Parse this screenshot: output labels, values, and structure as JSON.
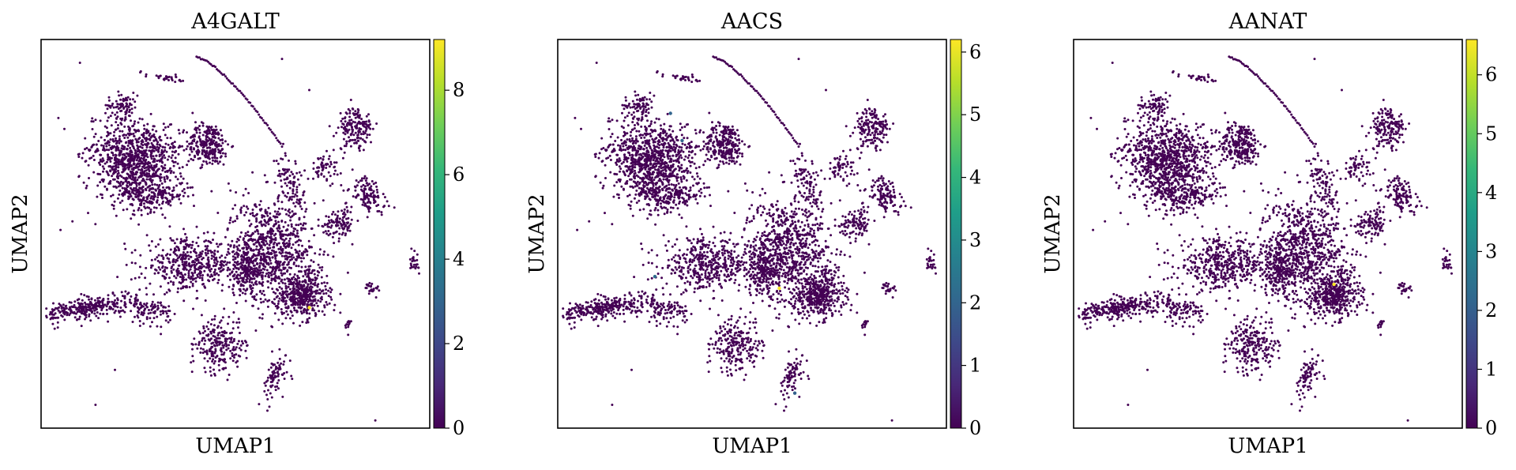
{
  "figure": {
    "colormap": "viridis",
    "colormap_stops": [
      "#440154",
      "#482878",
      "#3e4989",
      "#31688e",
      "#26828e",
      "#1f9e89",
      "#35b779",
      "#6ece58",
      "#b5de2b",
      "#fde725"
    ],
    "point_color_base": "#440154",
    "frame_color": "#000000"
  },
  "chart_data": [
    {
      "type": "scatter",
      "title": "A4GALT",
      "xlabel": "UMAP1",
      "ylabel": "UMAP2",
      "colorbar": {
        "min": 0,
        "max": 9.2,
        "ticks": [
          0,
          2,
          4,
          6,
          8
        ]
      },
      "grid": false,
      "highlight_points": [
        {
          "x": 6.9,
          "y": 3.1,
          "value": 9.2
        }
      ]
    },
    {
      "type": "scatter",
      "title": "AACS",
      "xlabel": "UMAP1",
      "ylabel": "UMAP2",
      "colorbar": {
        "min": 0,
        "max": 6.2,
        "ticks": [
          0,
          1,
          2,
          3,
          4,
          5,
          6
        ]
      },
      "grid": false,
      "highlight_points": [
        {
          "x": 5.7,
          "y": 3.6,
          "value": 6.2
        },
        {
          "x": 2.9,
          "y": 8.1,
          "value": 2.0
        },
        {
          "x": 3.2,
          "y": 7.4,
          "value": 2.0
        },
        {
          "x": 2.5,
          "y": 3.9,
          "value": 2.2
        },
        {
          "x": 6.1,
          "y": 0.9,
          "value": 1.9
        }
      ]
    },
    {
      "type": "scatter",
      "title": "AANAT",
      "xlabel": "UMAP1",
      "ylabel": "UMAP2",
      "colorbar": {
        "min": 0,
        "max": 6.6,
        "ticks": [
          0,
          1,
          2,
          3,
          4,
          5,
          6
        ]
      },
      "grid": false,
      "highlight_points": [
        {
          "x": 6.7,
          "y": 3.7,
          "value": 6.6
        }
      ]
    }
  ]
}
